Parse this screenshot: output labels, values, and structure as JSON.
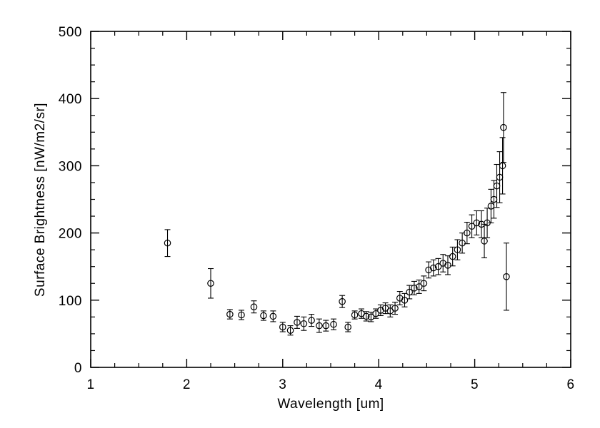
{
  "chart_data": {
    "type": "scatter",
    "title": "",
    "xlabel": "Wavelength [um]",
    "ylabel": "Surface Brightness [nW/m2/sr]",
    "xlim": [
      1,
      6
    ],
    "ylim": [
      0,
      500
    ],
    "x_ticks": [
      1,
      2,
      3,
      4,
      5,
      6
    ],
    "y_ticks": [
      0,
      100,
      200,
      300,
      400,
      500
    ],
    "x_minor_step": 0.25,
    "y_minor_step": 25,
    "grid": "off",
    "legend": "none",
    "marker": "open-circle",
    "error_bars": "vertical-with-caps",
    "color": "#000000",
    "background": "#ffffff",
    "points": [
      {
        "x": 1.8,
        "y": 185,
        "err": 20
      },
      {
        "x": 2.25,
        "y": 125,
        "err": 22
      },
      {
        "x": 2.45,
        "y": 79,
        "err": 7
      },
      {
        "x": 2.57,
        "y": 78,
        "err": 7
      },
      {
        "x": 2.7,
        "y": 90,
        "err": 9
      },
      {
        "x": 2.8,
        "y": 77,
        "err": 7
      },
      {
        "x": 2.9,
        "y": 76,
        "err": 8
      },
      {
        "x": 3.0,
        "y": 60,
        "err": 7
      },
      {
        "x": 3.08,
        "y": 55,
        "err": 7
      },
      {
        "x": 3.15,
        "y": 67,
        "err": 9
      },
      {
        "x": 3.22,
        "y": 65,
        "err": 10
      },
      {
        "x": 3.3,
        "y": 70,
        "err": 9
      },
      {
        "x": 3.38,
        "y": 62,
        "err": 10
      },
      {
        "x": 3.45,
        "y": 62,
        "err": 8
      },
      {
        "x": 3.53,
        "y": 64,
        "err": 8
      },
      {
        "x": 3.62,
        "y": 98,
        "err": 9
      },
      {
        "x": 3.68,
        "y": 60,
        "err": 7
      },
      {
        "x": 3.75,
        "y": 78,
        "err": 6
      },
      {
        "x": 3.82,
        "y": 80,
        "err": 7
      },
      {
        "x": 3.87,
        "y": 76,
        "err": 7
      },
      {
        "x": 3.92,
        "y": 75,
        "err": 7
      },
      {
        "x": 3.97,
        "y": 80,
        "err": 7
      },
      {
        "x": 4.02,
        "y": 85,
        "err": 8
      },
      {
        "x": 4.07,
        "y": 88,
        "err": 8
      },
      {
        "x": 4.12,
        "y": 84,
        "err": 9
      },
      {
        "x": 4.17,
        "y": 88,
        "err": 9
      },
      {
        "x": 4.22,
        "y": 103,
        "err": 10
      },
      {
        "x": 4.27,
        "y": 100,
        "err": 10
      },
      {
        "x": 4.32,
        "y": 112,
        "err": 10
      },
      {
        "x": 4.37,
        "y": 118,
        "err": 10
      },
      {
        "x": 4.42,
        "y": 120,
        "err": 10
      },
      {
        "x": 4.47,
        "y": 125,
        "err": 11
      },
      {
        "x": 4.52,
        "y": 145,
        "err": 12
      },
      {
        "x": 4.57,
        "y": 148,
        "err": 12
      },
      {
        "x": 4.62,
        "y": 150,
        "err": 12
      },
      {
        "x": 4.67,
        "y": 155,
        "err": 13
      },
      {
        "x": 4.72,
        "y": 152,
        "err": 14
      },
      {
        "x": 4.77,
        "y": 165,
        "err": 14
      },
      {
        "x": 4.82,
        "y": 175,
        "err": 15
      },
      {
        "x": 4.87,
        "y": 185,
        "err": 15
      },
      {
        "x": 4.92,
        "y": 200,
        "err": 16
      },
      {
        "x": 4.97,
        "y": 210,
        "err": 17
      },
      {
        "x": 5.02,
        "y": 215,
        "err": 18
      },
      {
        "x": 5.07,
        "y": 213,
        "err": 20
      },
      {
        "x": 5.1,
        "y": 188,
        "err": 25
      },
      {
        "x": 5.13,
        "y": 215,
        "err": 22
      },
      {
        "x": 5.17,
        "y": 240,
        "err": 25
      },
      {
        "x": 5.2,
        "y": 250,
        "err": 28
      },
      {
        "x": 5.23,
        "y": 270,
        "err": 32
      },
      {
        "x": 5.26,
        "y": 283,
        "err": 38
      },
      {
        "x": 5.29,
        "y": 300,
        "err": 42
      },
      {
        "x": 5.3,
        "y": 357,
        "err": 52
      },
      {
        "x": 5.33,
        "y": 135,
        "err": 50
      }
    ]
  }
}
